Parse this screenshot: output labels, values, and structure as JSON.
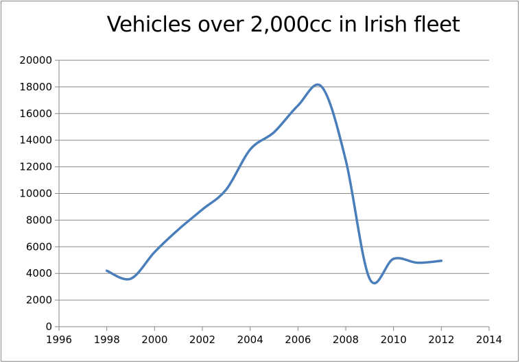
{
  "chart_data": {
    "type": "line",
    "title": "Vehicles over 2,000cc in Irish fleet",
    "xlabel": "",
    "ylabel": "",
    "xlim": [
      1996,
      2014
    ],
    "ylim": [
      0,
      20000
    ],
    "x_ticks": [
      1996,
      1998,
      2000,
      2002,
      2004,
      2006,
      2008,
      2010,
      2012,
      2014
    ],
    "y_ticks": [
      0,
      2000,
      4000,
      6000,
      8000,
      10000,
      12000,
      14000,
      16000,
      18000,
      20000
    ],
    "grid": {
      "horizontal": true,
      "vertical": false
    },
    "smoothed": true,
    "series": [
      {
        "color": "#4A7EBB",
        "points": [
          {
            "x": 1998,
            "y": 4200
          },
          {
            "x": 1999,
            "y": 3600
          },
          {
            "x": 2000,
            "y": 5600
          },
          {
            "x": 2001,
            "y": 7300
          },
          {
            "x": 2002,
            "y": 8800
          },
          {
            "x": 2003,
            "y": 10300
          },
          {
            "x": 2004,
            "y": 13300
          },
          {
            "x": 2005,
            "y": 14600
          },
          {
            "x": 2006,
            "y": 16600
          },
          {
            "x": 2007,
            "y": 18000
          },
          {
            "x": 2008,
            "y": 12500
          },
          {
            "x": 2009,
            "y": 3600
          },
          {
            "x": 2010,
            "y": 5100
          },
          {
            "x": 2011,
            "y": 4800
          },
          {
            "x": 2012,
            "y": 4950
          }
        ]
      }
    ]
  }
}
